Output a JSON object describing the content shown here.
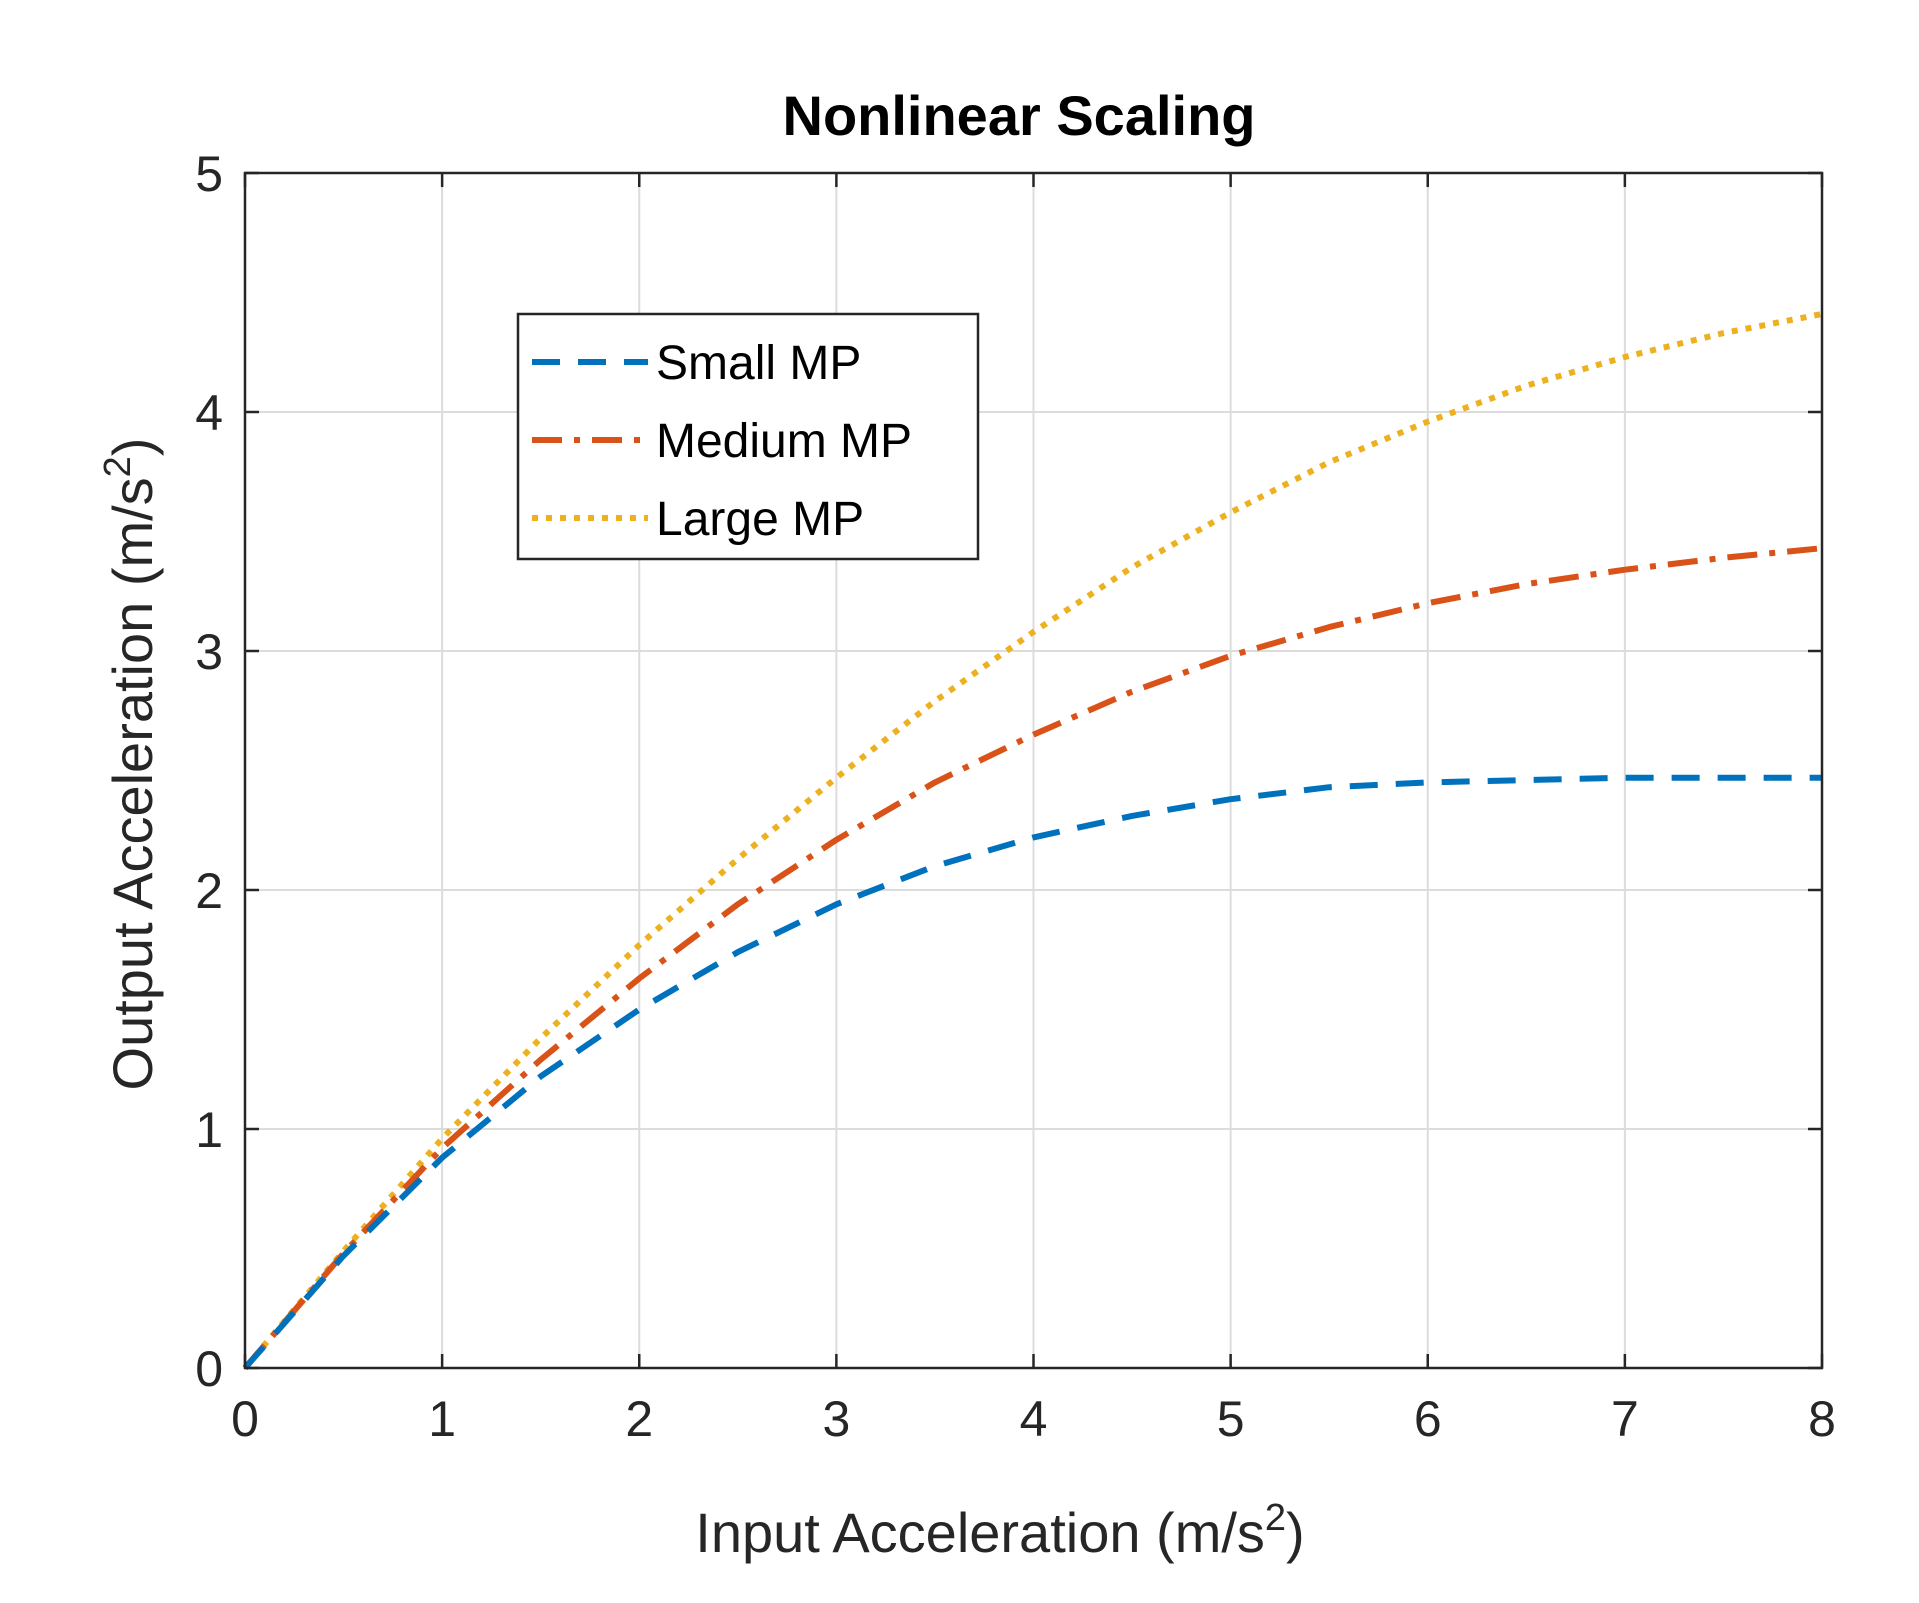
{
  "chart_data": {
    "type": "line",
    "title": "Nonlinear Scaling",
    "xlabel": "Input Acceleration (m/s",
    "xlabel_sup": "2",
    "xlabel_end": ")",
    "ylabel": "Output Acceleration (m/s",
    "ylabel_sup": "2",
    "ylabel_end": ")",
    "xlim": [
      0,
      8
    ],
    "ylim": [
      0,
      5
    ],
    "xticks": [
      0,
      1,
      2,
      3,
      4,
      5,
      6,
      7,
      8
    ],
    "yticks": [
      0,
      1,
      2,
      3,
      4,
      5
    ],
    "xtick_labels": [
      "0",
      "1",
      "2",
      "3",
      "4",
      "5",
      "6",
      "7",
      "8"
    ],
    "ytick_labels": [
      "0",
      "1",
      "2",
      "3",
      "4",
      "5"
    ],
    "grid": true,
    "legend_position": "upper-left inside",
    "x": [
      0,
      0.5,
      1,
      1.5,
      2,
      2.5,
      3,
      3.5,
      4,
      4.5,
      5,
      5.5,
      6,
      6.5,
      7,
      7.5,
      8
    ],
    "series": [
      {
        "name": "Small MP",
        "color": "#0072BD",
        "style": "dashed",
        "values": [
          0,
          0.47,
          0.88,
          1.22,
          1.5,
          1.74,
          1.94,
          2.1,
          2.22,
          2.31,
          2.38,
          2.43,
          2.45,
          2.46,
          2.47,
          2.47,
          2.47
        ]
      },
      {
        "name": "Medium MP",
        "color": "#D95319",
        "style": "dashdot",
        "values": [
          0,
          0.48,
          0.92,
          1.29,
          1.63,
          1.94,
          2.21,
          2.45,
          2.65,
          2.83,
          2.98,
          3.1,
          3.2,
          3.28,
          3.34,
          3.39,
          3.43
        ]
      },
      {
        "name": "Large MP",
        "color": "#EDB120",
        "style": "dotted",
        "values": [
          0,
          0.49,
          0.96,
          1.38,
          1.77,
          2.13,
          2.47,
          2.79,
          3.08,
          3.35,
          3.58,
          3.79,
          3.96,
          4.11,
          4.23,
          4.33,
          4.41
        ]
      }
    ]
  }
}
